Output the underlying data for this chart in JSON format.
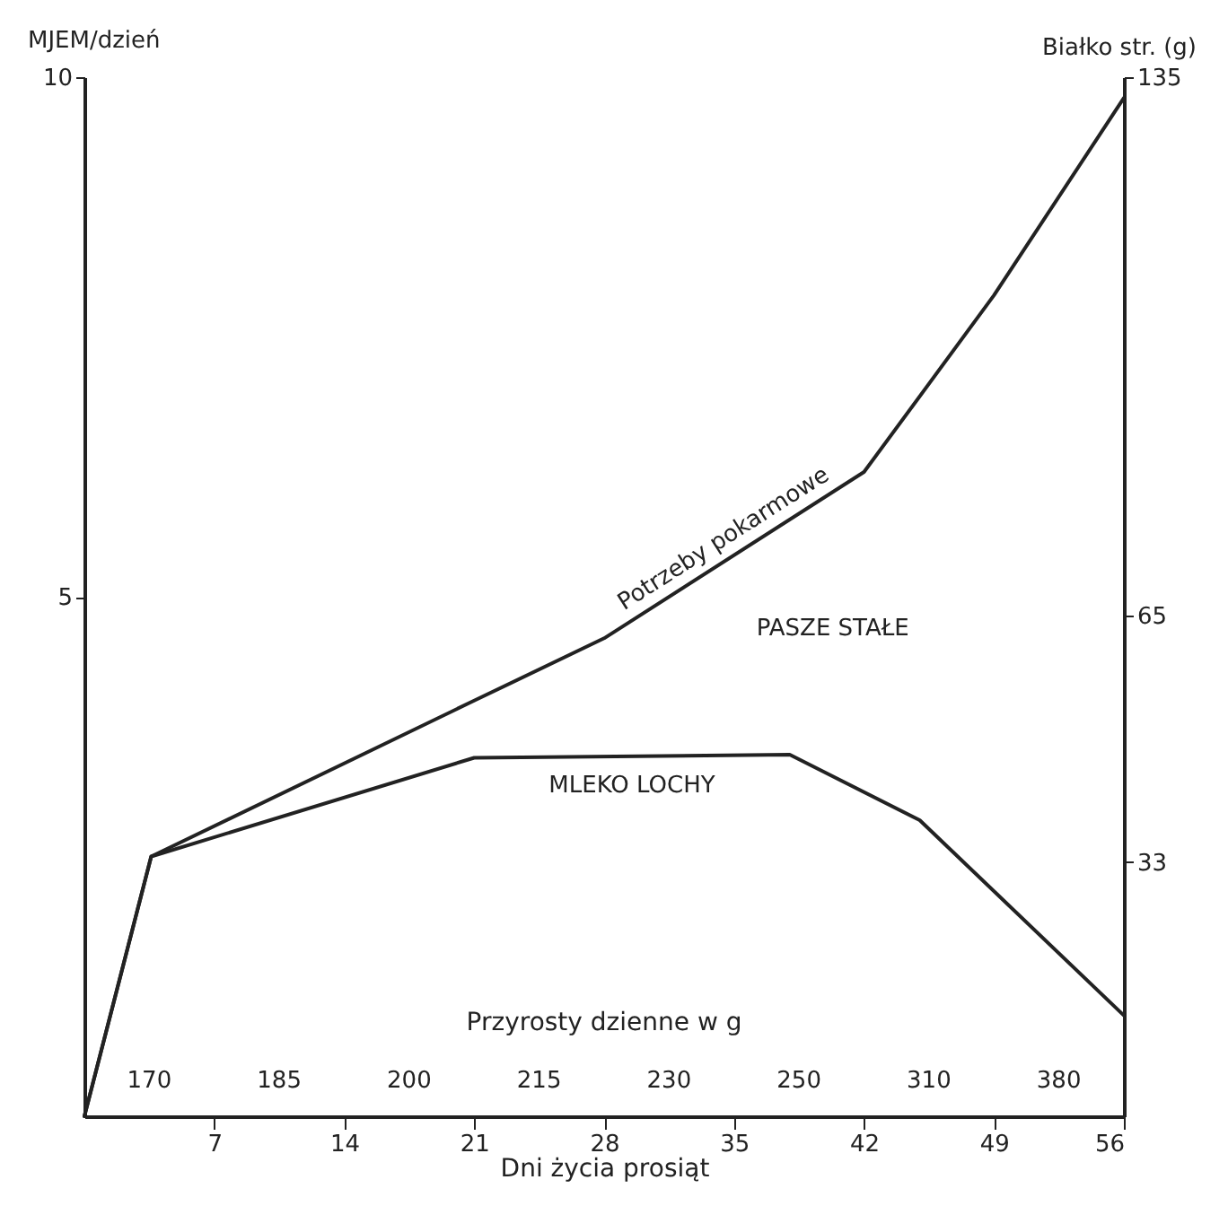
{
  "chart_data": {
    "type": "line",
    "xlabel": "Dni życia prosiąt",
    "ylabel": "MJEM/dzień",
    "y2label": "Białko str. (g)",
    "xlim": [
      0,
      56
    ],
    "xticks": [
      7,
      14,
      21,
      28,
      35,
      42,
      49,
      56
    ],
    "ylim": [
      0,
      10
    ],
    "yticks": [
      5,
      10
    ],
    "y2lim": [
      0,
      135
    ],
    "y2ticks": [
      33,
      65,
      135
    ],
    "series": [
      {
        "name": "Potrzeby pokarmowe",
        "color": "#222222",
        "x": [
          0,
          3.6,
          21,
          28,
          42,
          49,
          56
        ],
        "values": [
          0,
          2.5,
          4.0,
          4.6,
          6.2,
          7.9,
          9.8
        ]
      },
      {
        "name": "MLEKO LOCHY",
        "color": "#222222",
        "x": [
          0,
          3.6,
          21,
          38,
          45,
          56
        ],
        "values": [
          0,
          2.5,
          3.45,
          3.48,
          2.85,
          0.97
        ]
      }
    ],
    "annotations": [
      "PASZE STAŁE",
      "Przyrosty dzienne w g",
      "170",
      "185",
      "200",
      "215",
      "230",
      "250",
      "310",
      "380"
    ],
    "grid": false
  }
}
